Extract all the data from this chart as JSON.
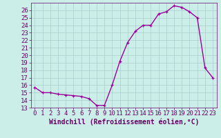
{
  "x": [
    0,
    1,
    2,
    3,
    4,
    5,
    6,
    7,
    8,
    9,
    10,
    11,
    12,
    13,
    14,
    15,
    16,
    17,
    18,
    19,
    20,
    21,
    22,
    23
  ],
  "y": [
    15.7,
    15.0,
    15.0,
    14.8,
    14.7,
    14.6,
    14.5,
    14.2,
    13.3,
    13.3,
    16.0,
    19.2,
    21.7,
    23.2,
    24.0,
    24.0,
    25.5,
    25.8,
    26.6,
    26.4,
    25.8,
    25.0,
    18.3,
    17.0
  ],
  "line_color": "#990099",
  "marker": "+",
  "bg_color": "#cceee8",
  "grid_color": "#aacccc",
  "xlabel": "Windchill (Refroidissement éolien,°C)",
  "xlim": [
    -0.5,
    23.5
  ],
  "ylim": [
    13,
    27
  ],
  "yticks": [
    13,
    14,
    15,
    16,
    17,
    18,
    19,
    20,
    21,
    22,
    23,
    24,
    25,
    26
  ],
  "xticks": [
    0,
    1,
    2,
    3,
    4,
    5,
    6,
    7,
    8,
    9,
    10,
    11,
    12,
    13,
    14,
    15,
    16,
    17,
    18,
    19,
    20,
    21,
    22,
    23
  ],
  "font_color": "#660066",
  "tick_fontsize": 6.5,
  "xlabel_fontsize": 7.0,
  "linewidth": 1.0,
  "markersize": 3.5
}
